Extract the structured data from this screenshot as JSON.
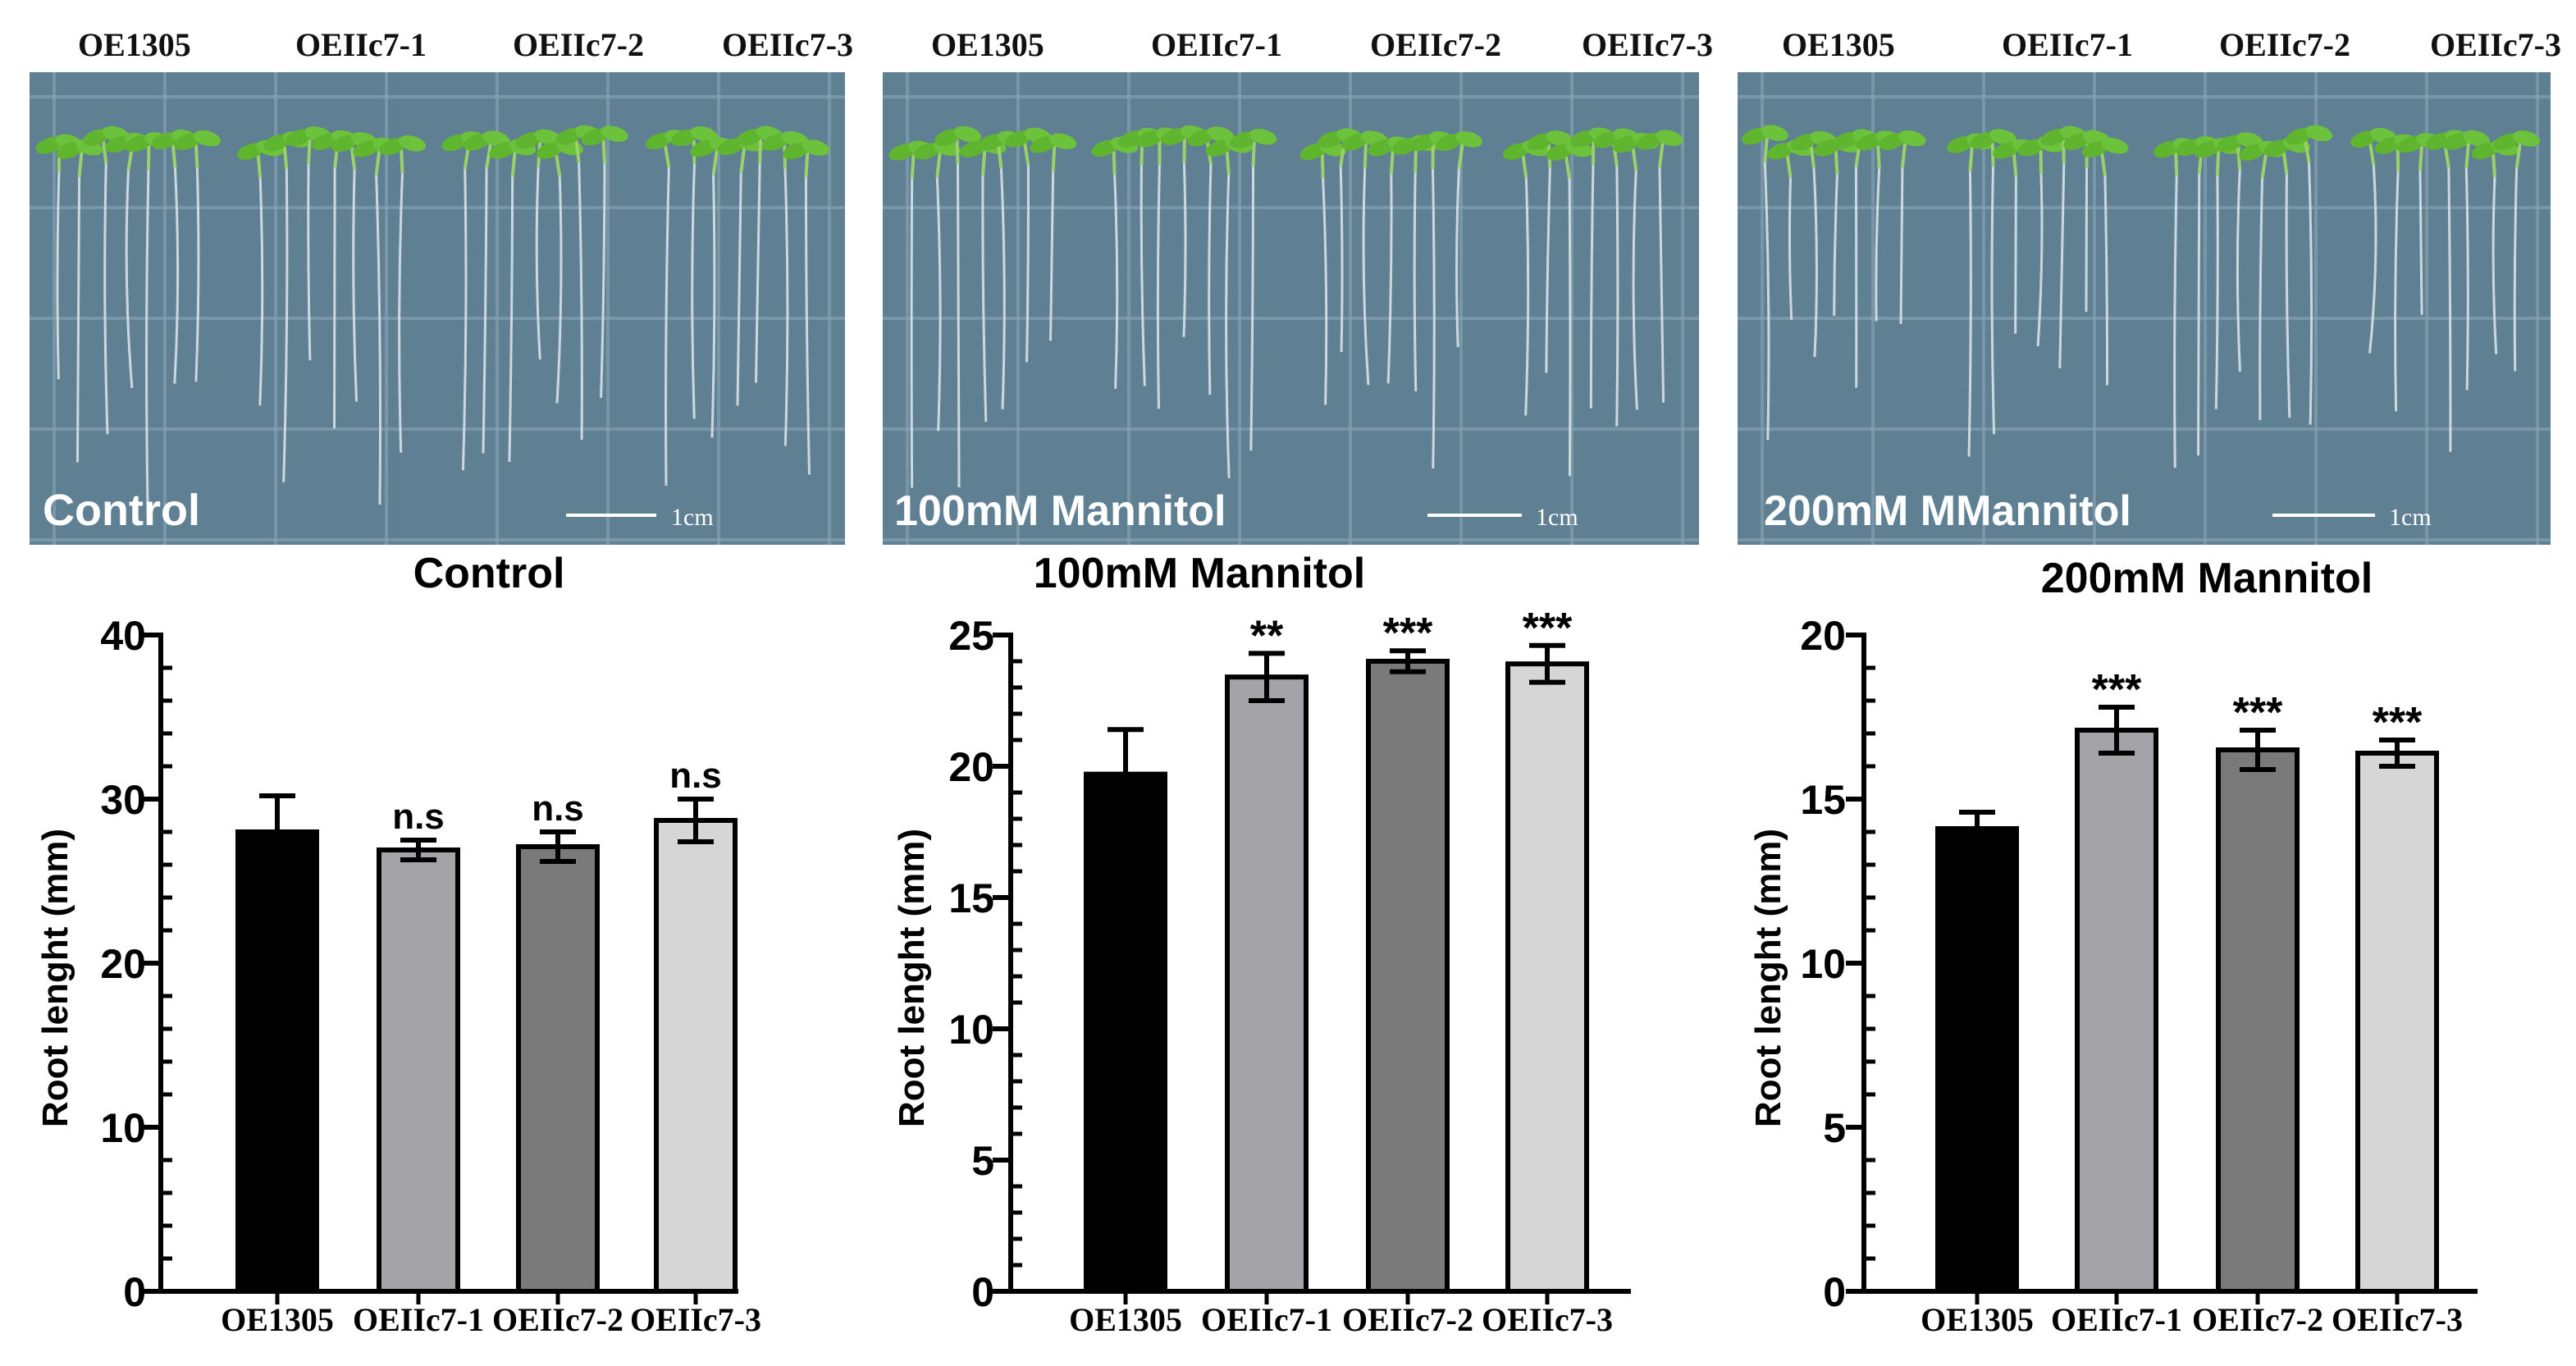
{
  "photo_panels": [
    {
      "genotype_labels": [
        "OE1305",
        "OEIIc7-1",
        "OEIIc7-2",
        "OEIIc7-3"
      ],
      "condition_label": "Control",
      "scale_bar_label": "1cm"
    },
    {
      "genotype_labels": [
        "OE1305",
        "OEIIc7-1",
        "OEIIc7-2",
        "OEIIc7-3"
      ],
      "condition_label": "100mM Mannitol",
      "scale_bar_label": "1cm"
    },
    {
      "genotype_labels": [
        "OE1305",
        "OEIIc7-1",
        "OEIIc7-2",
        "OEIIc7-3"
      ],
      "condition_label": "200mM MMannitol",
      "scale_bar_label": "1cm"
    }
  ],
  "colors": {
    "plate_bg": "#5f7f93",
    "plate_grid": "#8aa6b7",
    "seedling_leaf": "#5fb52e",
    "root": "#dfe7ea",
    "bar_fills": [
      "#000000",
      "#a3a3a8",
      "#7a7a7a",
      "#d6d6d6"
    ],
    "axis": "#000000"
  },
  "chart_data": [
    {
      "type": "bar",
      "title": "Control",
      "ylabel": "Root lenght (mm)",
      "xlabel": "",
      "categories": [
        "OE1305",
        "OEIIc7-1",
        "OEIIc7-2",
        "OEIIc7-3"
      ],
      "values": [
        28.0,
        26.9,
        27.1,
        28.7
      ],
      "errors": [
        2.2,
        0.6,
        0.9,
        1.3
      ],
      "significance": [
        "",
        "n.s",
        "n.s",
        "n.s"
      ],
      "ylim": [
        0,
        40
      ],
      "major_ticks": [
        0,
        10,
        20,
        30,
        40
      ],
      "minor_step": 2,
      "tick_labels": [
        "0",
        "10",
        "20",
        "30",
        "40"
      ]
    },
    {
      "type": "bar",
      "title": "100mM Mannitol",
      "ylabel": "Root lenght (mm)",
      "xlabel": "",
      "categories": [
        "OE1305",
        "OEIIc7-1",
        "OEIIc7-2",
        "OEIIc7-3"
      ],
      "values": [
        19.7,
        23.4,
        24.0,
        23.9
      ],
      "errors": [
        1.7,
        0.9,
        0.4,
        0.7
      ],
      "significance": [
        "",
        "**",
        "***",
        "***"
      ],
      "ylim": [
        0,
        25
      ],
      "major_ticks": [
        0,
        5,
        10,
        15,
        20,
        25
      ],
      "minor_step": 1,
      "tick_labels": [
        "0",
        "5",
        "10",
        "15",
        "20",
        "25"
      ]
    },
    {
      "type": "bar",
      "title": "200mM Mannitol",
      "ylabel": "Root lenght (mm)",
      "xlabel": "",
      "categories": [
        "OE1305",
        "OEIIc7-1",
        "OEIIc7-2",
        "OEIIc7-3"
      ],
      "values": [
        14.1,
        17.1,
        16.5,
        16.4
      ],
      "errors": [
        0.5,
        0.7,
        0.6,
        0.4
      ],
      "significance": [
        "",
        "***",
        "***",
        "***"
      ],
      "ylim": [
        0,
        20
      ],
      "major_ticks": [
        0,
        5,
        10,
        15,
        20
      ],
      "minor_step": 1,
      "tick_labels": [
        "0",
        "5",
        "10",
        "15",
        "20"
      ]
    }
  ]
}
